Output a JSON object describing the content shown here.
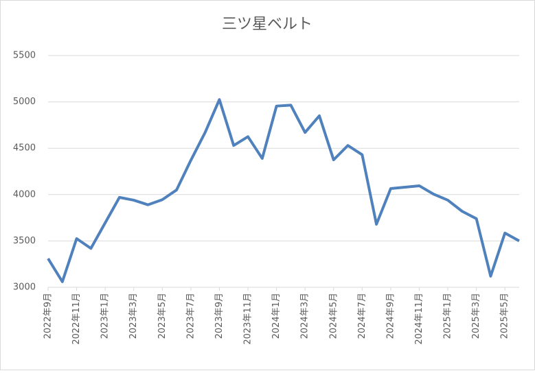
{
  "chart_data": {
    "type": "line",
    "title": "三ツ星ベルト",
    "categories": [
      "2022年9月",
      null,
      "2022年11月",
      null,
      "2023年1月",
      null,
      "2023年3月",
      null,
      "2023年5月",
      null,
      "2023年7月",
      null,
      "2023年9月",
      null,
      "2023年11月",
      null,
      "2024年1月",
      null,
      "2024年3月",
      null,
      "2024年5月",
      null,
      "2024年7月",
      null,
      "2024年9月",
      null,
      "2024年11月",
      null,
      "2025年1月",
      null,
      "2025年3月",
      null,
      "2025年5月",
      null
    ],
    "values": [
      3310,
      3060,
      3525,
      3420,
      3695,
      3970,
      3940,
      3890,
      3945,
      4050,
      4370,
      4670,
      5025,
      4530,
      4625,
      4390,
      4955,
      4965,
      4670,
      4850,
      4375,
      4530,
      4430,
      3680,
      4065,
      4080,
      4095,
      4005,
      3940,
      3820,
      3740,
      3120,
      3585,
      3500
    ],
    "color": "#4f81bd",
    "ylim": [
      3000,
      5500
    ],
    "yticks": [
      3000,
      3500,
      4000,
      4500,
      5000,
      5500
    ],
    "grid": true
  }
}
